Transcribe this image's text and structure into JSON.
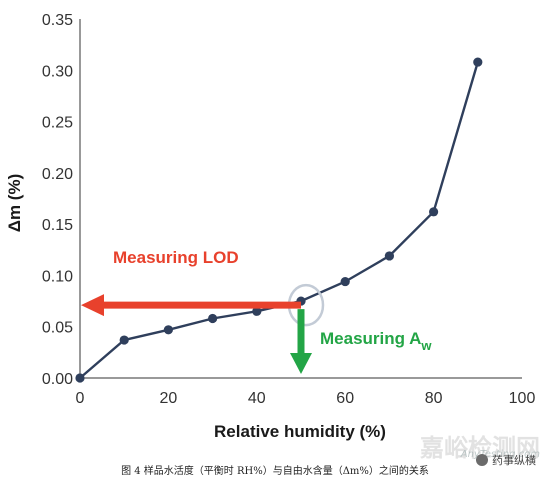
{
  "chart_data": {
    "type": "line",
    "xlabel": "Relative humidity (%)",
    "ylabel": "Δm (%)",
    "xlim": [
      0,
      100
    ],
    "ylim": [
      0,
      0.35
    ],
    "x_ticks": [
      "0",
      "20",
      "40",
      "60",
      "80",
      "100"
    ],
    "y_ticks": [
      "0.00",
      "0.05",
      "0.10",
      "0.15",
      "0.20",
      "0.25",
      "0.30",
      "0.35"
    ],
    "grid": false,
    "series": [
      {
        "points": [
          {
            "x": 0,
            "y": 0.0
          },
          {
            "x": 10,
            "y": 0.037
          },
          {
            "x": 20,
            "y": 0.047
          },
          {
            "x": 30,
            "y": 0.058
          },
          {
            "x": 40,
            "y": 0.065
          },
          {
            "x": 50,
            "y": 0.075
          },
          {
            "x": 60,
            "y": 0.094
          },
          {
            "x": 70,
            "y": 0.119
          },
          {
            "x": 80,
            "y": 0.162
          },
          {
            "x": 90,
            "y": 0.308
          }
        ]
      }
    ],
    "annotations": [
      {
        "text": "Measuring LOD",
        "color": "#e8412c"
      },
      {
        "text": "Measuring A",
        "subscript": "w",
        "color": "#23a546"
      }
    ],
    "colors": {
      "line": "#2f3f5c",
      "marker": "#2f3f5c",
      "lod_arrow": "#e8412c",
      "aw_arrow": "#23a546",
      "highlight_circle": "#c3cbd6"
    }
  },
  "caption": "图 4 样品水活度（平衡时 RH%）与自由水含量（Δm%）之间的关系",
  "watermark": "嘉峪检测网",
  "watermark_sub": "AnyTesting.com",
  "brand": "药事纵横"
}
